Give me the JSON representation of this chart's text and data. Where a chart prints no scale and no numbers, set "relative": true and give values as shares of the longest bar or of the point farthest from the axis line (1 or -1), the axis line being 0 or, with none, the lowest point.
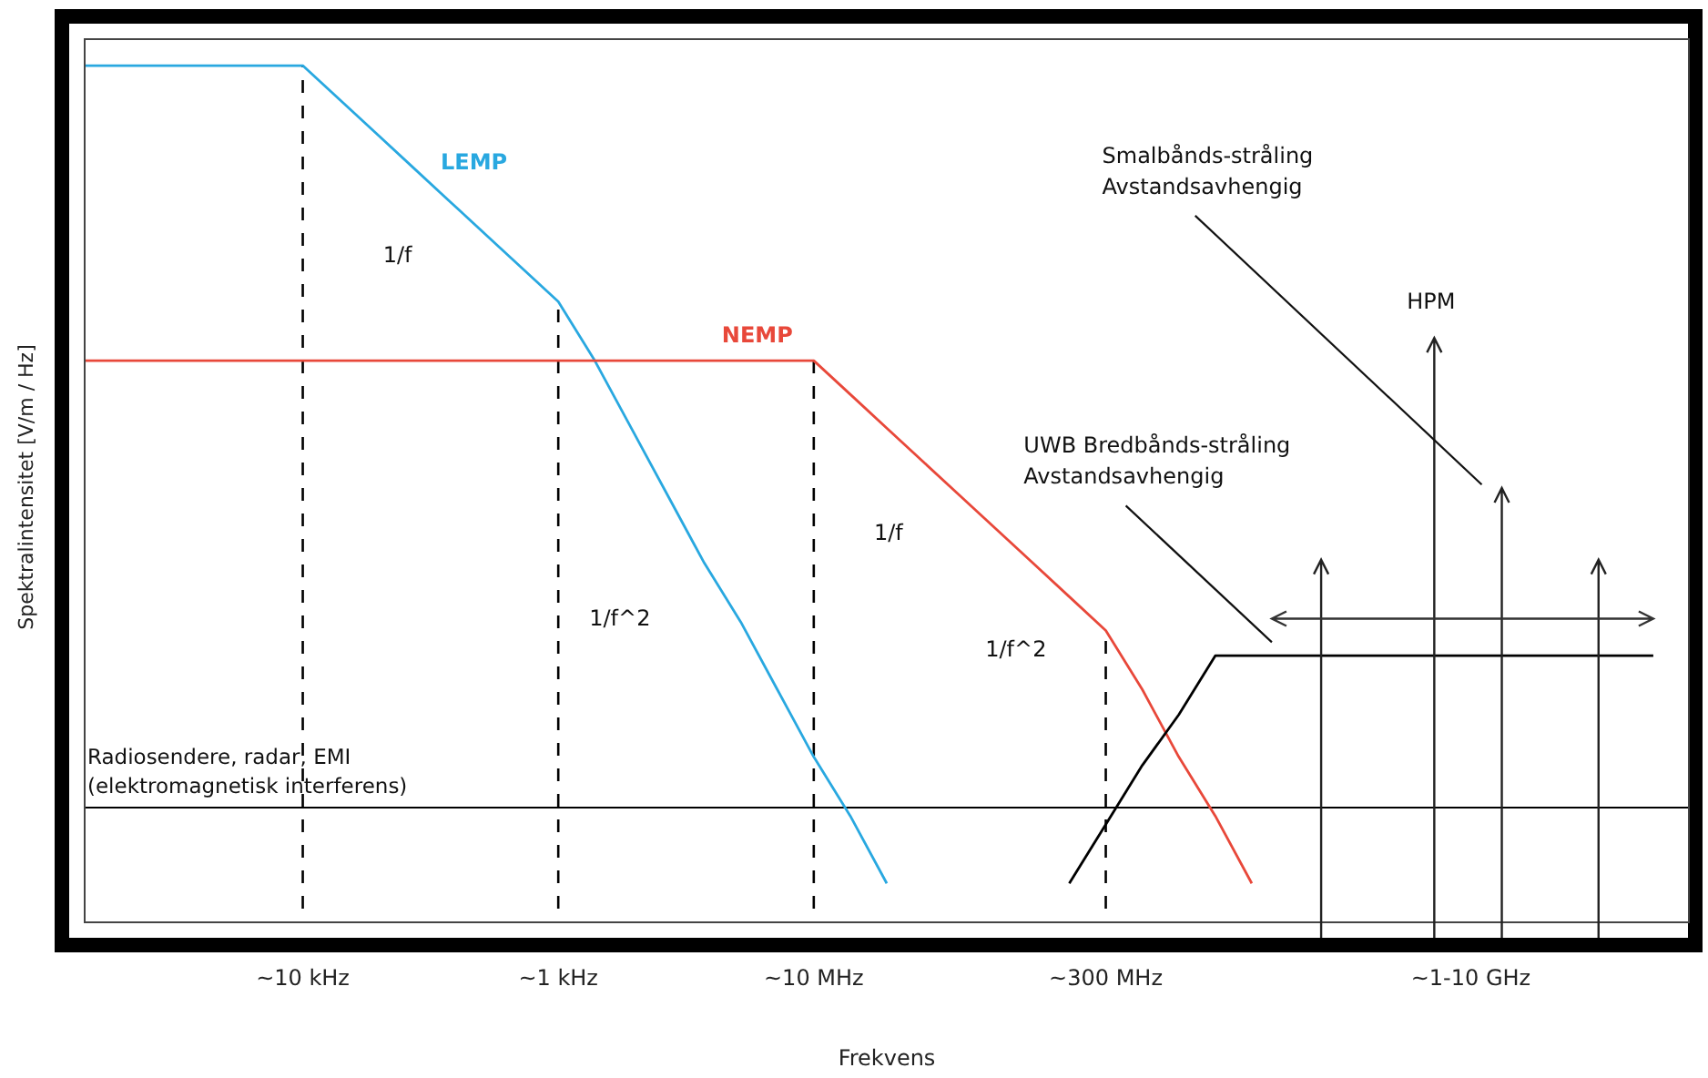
{
  "chart_data": {
    "type": "line",
    "relative": true,
    "xlabel": "Frekvens",
    "ylabel": "Spektralintensitet [V/m / Hz]",
    "categories": [
      null,
      null,
      null,
      null,
      null,
      null,
      "~10 kHz",
      null,
      null,
      null,
      null,
      null,
      null,
      "~1 kHz",
      null,
      null,
      null,
      null,
      null,
      null,
      "~10 MHz",
      null,
      null,
      null,
      null,
      null,
      null,
      null,
      "~300 MHz",
      null,
      null,
      null,
      null,
      null,
      null,
      null,
      null,
      null,
      "~1-10 GHz",
      null,
      null,
      null,
      null,
      null,
      null
    ],
    "tick_labels": "x",
    "grid": false,
    "series": [
      {
        "name": "LEMP",
        "color": "#29a8e0",
        "values": [
          1,
          1,
          1,
          1,
          1,
          1,
          1,
          0.96,
          0.92,
          0.88,
          0.84,
          0.8,
          0.76,
          0.72,
          0.65,
          0.57,
          0.49,
          0.41,
          0.34,
          0.26,
          0.18,
          0.11,
          0.03,
          null,
          null,
          null,
          null,
          null,
          null,
          null,
          null,
          null,
          null,
          null,
          null,
          null,
          null,
          null,
          null,
          null,
          null,
          null,
          null,
          null,
          null
        ]
      },
      {
        "name": "NEMP",
        "color": "#e8483a",
        "values": [
          0.65,
          0.65,
          0.65,
          0.65,
          0.65,
          0.65,
          0.65,
          0.65,
          0.65,
          0.65,
          0.65,
          0.65,
          0.65,
          0.65,
          0.65,
          0.65,
          0.65,
          0.65,
          0.65,
          0.65,
          0.65,
          0.61,
          0.57,
          0.53,
          0.49,
          0.45,
          0.41,
          0.37,
          0.33,
          0.26,
          0.18,
          0.11,
          0.03,
          null,
          null,
          null,
          null,
          null,
          null,
          null,
          null,
          null,
          null,
          null,
          null
        ]
      },
      {
        "color": "#000000",
        "values": [
          null,
          null,
          null,
          null,
          null,
          null,
          null,
          null,
          null,
          null,
          null,
          null,
          null,
          null,
          null,
          null,
          null,
          null,
          null,
          null,
          null,
          null,
          null,
          null,
          null,
          null,
          null,
          0.03,
          0.1,
          0.17,
          0.23,
          0.3,
          0.3,
          0.3,
          0.3,
          0.3,
          0.3,
          0.3,
          0.3,
          0.3,
          0.3,
          0.3,
          0.3,
          0.3,
          null
        ]
      }
    ],
    "ref_lines": [
      {
        "axis": "y",
        "value": 0.12,
        "label": "Radiosendere, radar, EMI\n(elektromagnetisk interferens)",
        "color": "#000000"
      },
      {
        "axis": "x",
        "value": "~10 kHz",
        "color": "#000000",
        "line_style": "dashed"
      },
      {
        "axis": "x",
        "value": "~1 kHz",
        "color": "#000000",
        "line_style": "dashed"
      },
      {
        "axis": "x",
        "value": "~10 MHz",
        "color": "#000000",
        "line_style": "dashed"
      },
      {
        "axis": "x",
        "value": "~300 MHz",
        "color": "#000000",
        "line_style": "dashed"
      }
    ],
    "annotations": [
      "1/f",
      "1/f^2",
      "1/f",
      "1/f^2",
      "Smalbånds-stråling\nAvstandsavhengig",
      "HPM",
      "UWB Bredbånds-stråling\nAvstandsavhengig"
    ]
  }
}
